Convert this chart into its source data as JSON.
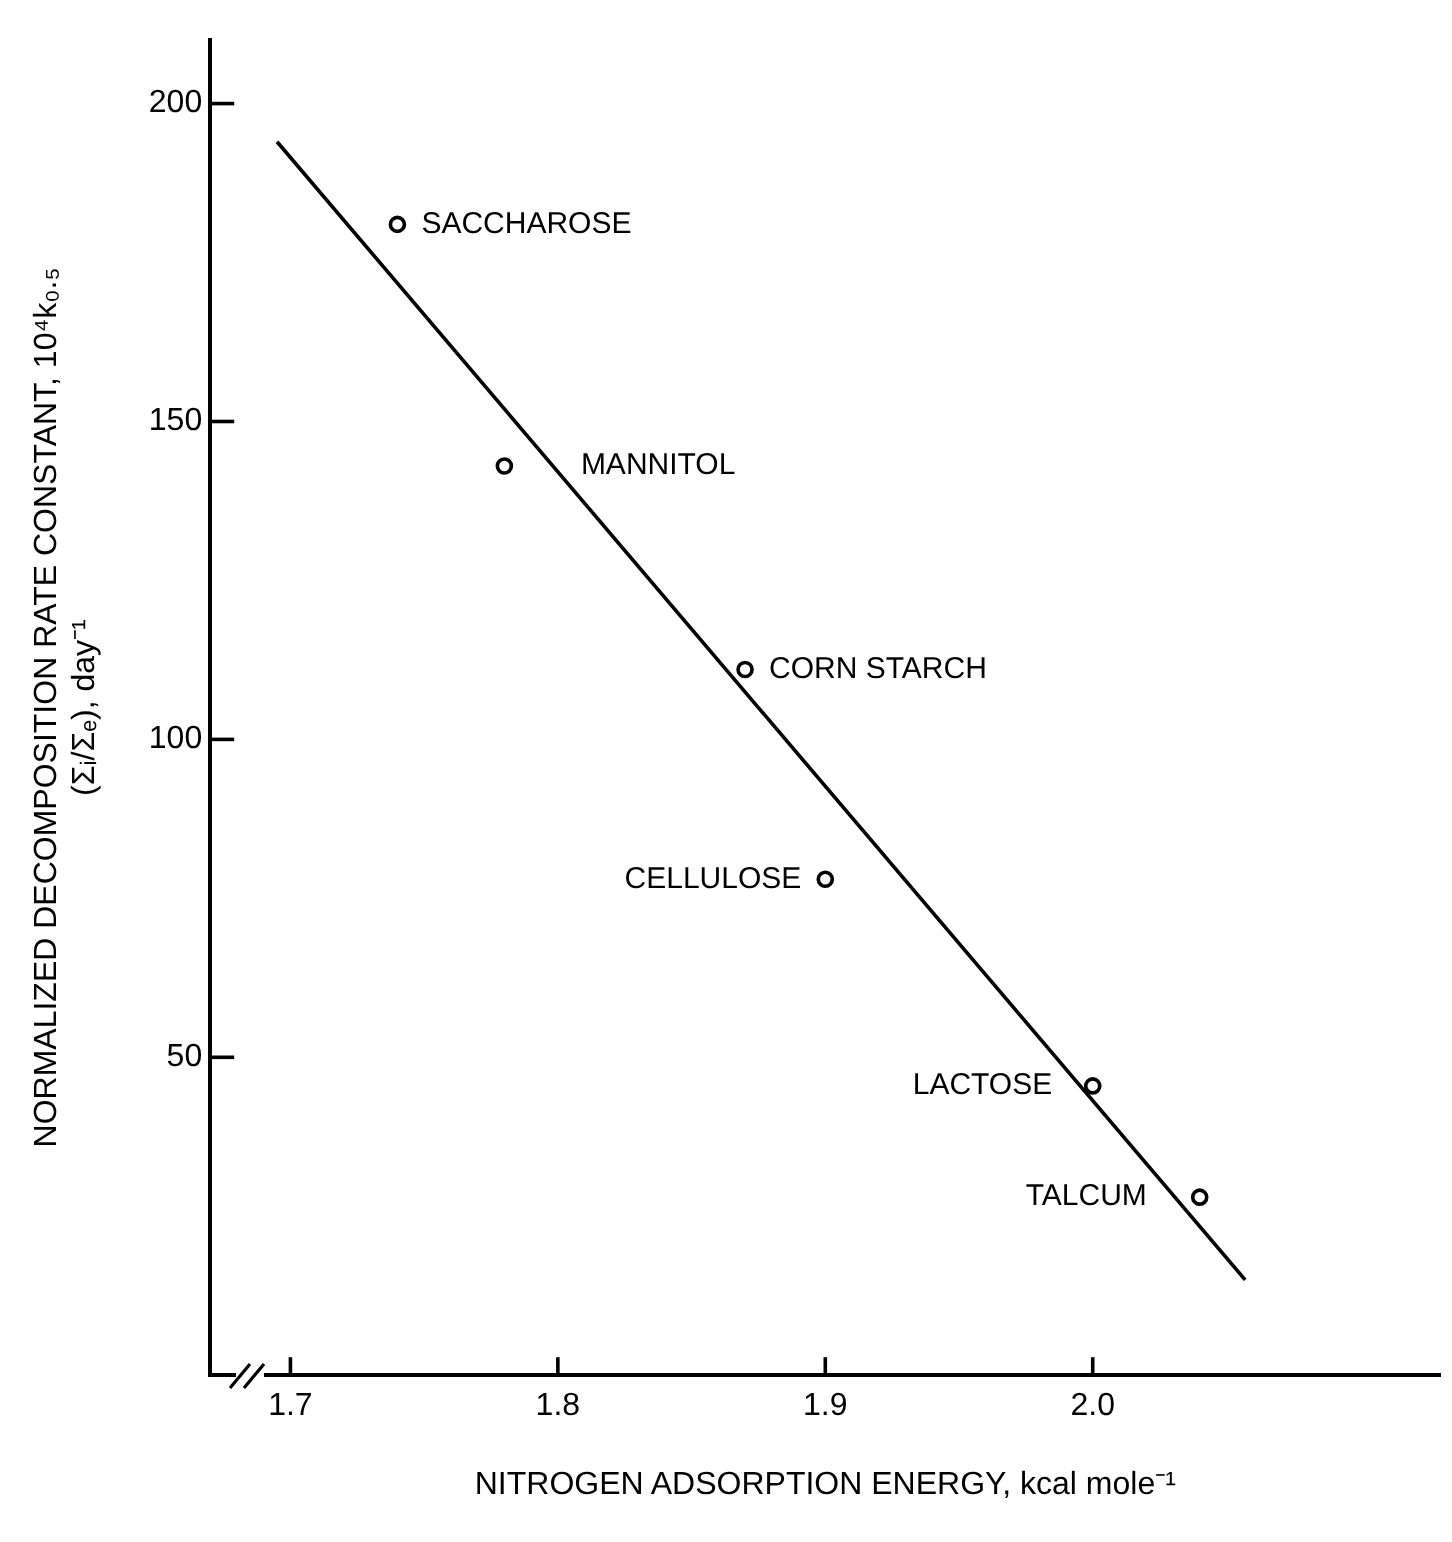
{
  "chart_data": {
    "type": "scatter",
    "xlabel": "NITROGEN ADSORPTION ENERGY, kcal mole⁻¹",
    "ylabel": "NORMALIZED DECOMPOSITION RATE CONSTANT, 10⁴k₀.₅\n(Σᵢ/Σₑ), day⁻¹",
    "x": [
      1.74,
      1.78,
      1.87,
      1.9,
      2.0,
      2.04
    ],
    "series": [
      {
        "color": "#000000",
        "marker": "circle",
        "values": [
          181,
          143,
          111,
          78,
          45.5,
          28
        ]
      },
      {
        "type": "line",
        "color": "#000000",
        "line_style": "solid",
        "x": [
          1.695,
          2.057
        ],
        "values": [
          194,
          15
        ]
      }
    ],
    "annotations": [
      {
        "text": "SACCHAROSE",
        "x": 1.74,
        "y": 181
      },
      {
        "text": "MANNITOL",
        "x": 1.78,
        "y": 143
      },
      {
        "text": "CORN STARCH",
        "x": 1.87,
        "y": 111
      },
      {
        "text": "CELLULOSE",
        "x": 1.9,
        "y": 78
      },
      {
        "text": "LACTOSE",
        "x": 2.0,
        "y": 45.5
      },
      {
        "text": "TALCUM",
        "x": 2.04,
        "y": 28
      }
    ],
    "xlim": [
      1.67,
      2.13
    ],
    "ylim": [
      0,
      210
    ],
    "xticks": [
      1.7,
      1.8,
      1.9,
      {
        "value": 2,
        "label": "2.0"
      }
    ],
    "yticks": [
      50,
      100,
      150,
      200
    ],
    "grid": false,
    "legend": false
  }
}
